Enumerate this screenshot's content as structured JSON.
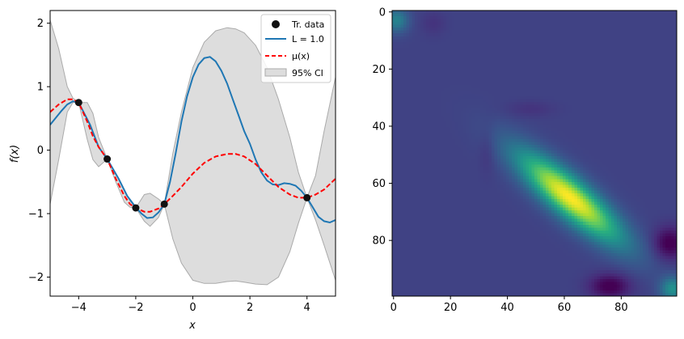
{
  "chart_data": [
    {
      "type": "line",
      "xlabel": "x",
      "ylabel": "f(x)",
      "xlim": [
        -5,
        5
      ],
      "ylim": [
        -2.3,
        2.2
      ],
      "xticks": [
        -4,
        -2,
        0,
        2,
        4
      ],
      "xtick_labels": [
        "−4",
        "−2",
        "0",
        "2",
        "4"
      ],
      "yticks": [
        -2,
        -1,
        0,
        1,
        2
      ],
      "ytick_labels": [
        "−2",
        "−1",
        "0",
        "1",
        "2"
      ],
      "legend": {
        "position": "top-right",
        "entries": [
          "Tr. data",
          "L = 1.0",
          "μ(x)",
          "95% CI"
        ]
      },
      "train_data": {
        "name": "Tr. data",
        "x": [
          -4,
          -3,
          -2,
          -1,
          4
        ],
        "y": [
          0.75,
          -0.14,
          -0.91,
          -0.85,
          -0.75
        ]
      },
      "sample": {
        "name": "L = 1.0",
        "color": "#1f77b4",
        "x": [
          -5,
          -4.6,
          -4.4,
          -4.2,
          -4,
          -3.6,
          -3.3,
          -3,
          -2.6,
          -2.3,
          -2,
          -1.8,
          -1.6,
          -1.4,
          -1.2,
          -1,
          -0.8,
          -0.6,
          -0.4,
          -0.2,
          0,
          0.2,
          0.4,
          0.6,
          0.8,
          1.0,
          1.2,
          1.4,
          1.6,
          1.8,
          2.0,
          2.2,
          2.4,
          2.6,
          2.8,
          3.0,
          3.2,
          3.4,
          3.6,
          3.8,
          4.0,
          4.2,
          4.4,
          4.6,
          4.8,
          5.0
        ],
        "y": [
          0.4,
          0.62,
          0.72,
          0.77,
          0.75,
          0.4,
          0.05,
          -0.14,
          -0.45,
          -0.72,
          -0.9,
          -1.0,
          -1.07,
          -1.06,
          -0.98,
          -0.85,
          -0.5,
          -0.05,
          0.45,
          0.85,
          1.15,
          1.35,
          1.45,
          1.47,
          1.4,
          1.25,
          1.05,
          0.8,
          0.55,
          0.3,
          0.1,
          -0.15,
          -0.35,
          -0.48,
          -0.54,
          -0.55,
          -0.52,
          -0.53,
          -0.56,
          -0.64,
          -0.75,
          -0.9,
          -1.05,
          -1.12,
          -1.14,
          -1.1
        ]
      },
      "mean": {
        "name": "μ(x)",
        "color": "#ff0000",
        "x": [
          -5,
          -4.7,
          -4.4,
          -4.2,
          -4,
          -3.7,
          -3.5,
          -3.3,
          -3,
          -2.7,
          -2.4,
          -2.2,
          -2,
          -1.7,
          -1.5,
          -1.2,
          -1,
          -0.7,
          -0.4,
          0,
          0.4,
          0.8,
          1.2,
          1.5,
          1.8,
          2.2,
          2.6,
          3.0,
          3.4,
          3.7,
          4.0,
          4.3,
          4.6,
          5.0
        ],
        "y": [
          0.6,
          0.72,
          0.8,
          0.8,
          0.75,
          0.45,
          0.22,
          0.05,
          -0.14,
          -0.45,
          -0.72,
          -0.85,
          -0.91,
          -0.97,
          -0.97,
          -0.92,
          -0.85,
          -0.72,
          -0.58,
          -0.37,
          -0.2,
          -0.1,
          -0.06,
          -0.06,
          -0.1,
          -0.22,
          -0.4,
          -0.58,
          -0.7,
          -0.75,
          -0.75,
          -0.7,
          -0.62,
          -0.45
        ]
      },
      "ci": {
        "name": "95% CI",
        "x": [
          -5,
          -4.7,
          -4.4,
          -4.2,
          -4,
          -3.7,
          -3.5,
          -3.3,
          -3,
          -2.7,
          -2.4,
          -2.2,
          -2,
          -1.7,
          -1.5,
          -1.2,
          -1,
          -0.7,
          -0.4,
          0,
          0.4,
          0.8,
          1.2,
          1.5,
          1.8,
          2.2,
          2.6,
          3.0,
          3.4,
          3.7,
          4.0,
          4.3,
          4.6,
          5.0
        ],
        "upper": [
          2.05,
          1.6,
          1.0,
          0.82,
          0.75,
          0.75,
          0.58,
          0.2,
          -0.14,
          -0.38,
          -0.62,
          -0.8,
          -0.91,
          -0.7,
          -0.68,
          -0.77,
          -0.85,
          -0.05,
          0.6,
          1.3,
          1.7,
          1.88,
          1.93,
          1.91,
          1.85,
          1.65,
          1.3,
          0.8,
          0.2,
          -0.35,
          -0.75,
          -0.4,
          0.3,
          1.15
        ],
        "lower": [
          -0.85,
          -0.15,
          0.6,
          0.75,
          0.75,
          0.17,
          -0.15,
          -0.26,
          -0.14,
          -0.5,
          -0.82,
          -0.9,
          -0.91,
          -1.12,
          -1.2,
          -1.06,
          -0.85,
          -1.4,
          -1.78,
          -2.05,
          -2.1,
          -2.1,
          -2.07,
          -2.06,
          -2.08,
          -2.11,
          -2.12,
          -2.0,
          -1.6,
          -1.15,
          -0.75,
          -1.1,
          -1.5,
          -2.05
        ]
      }
    },
    {
      "type": "heatmap",
      "colormap": "viridis",
      "xlim": [
        0,
        99
      ],
      "ylim": [
        99,
        0
      ],
      "xticks": [
        0,
        20,
        40,
        60,
        80
      ],
      "xtick_labels": [
        "0",
        "20",
        "40",
        "60",
        "80"
      ],
      "yticks": [
        0,
        20,
        40,
        60,
        80
      ],
      "ytick_labels": [
        "0",
        "20",
        "40",
        "60",
        "80"
      ],
      "values_description": "Smooth field near 0.2 background; bright elongated blob (~1.0) centered at column 62, row 65 oriented diagonally; dark spots near (97, 81) and (75, 96); bright spots near (2, 3) and (97, 96).",
      "base_value": 0.2,
      "blobs": [
        {
          "cx": 62,
          "cy": 65,
          "sx": 16,
          "sy": 4.5,
          "angle": 40,
          "amp": 0.8
        },
        {
          "cx": 97,
          "cy": 81,
          "sx": 4,
          "sy": 4,
          "angle": 0,
          "amp": -0.22
        },
        {
          "cx": 76,
          "cy": 96,
          "sx": 5,
          "sy": 3,
          "angle": 0,
          "amp": -0.22
        },
        {
          "cx": 1,
          "cy": 3,
          "sx": 3,
          "sy": 3,
          "angle": 0,
          "amp": 0.25
        },
        {
          "cx": 98,
          "cy": 97,
          "sx": 3,
          "sy": 3,
          "angle": 0,
          "amp": 0.3
        },
        {
          "cx": 14,
          "cy": 4,
          "sx": 3,
          "sy": 3,
          "angle": 0,
          "amp": -0.05
        },
        {
          "cx": 33,
          "cy": 48,
          "sx": 2,
          "sy": 6,
          "angle": 0,
          "amp": -0.05
        },
        {
          "cx": 48,
          "cy": 34,
          "sx": 6,
          "sy": 2,
          "angle": 0,
          "amp": -0.05
        }
      ]
    }
  ]
}
